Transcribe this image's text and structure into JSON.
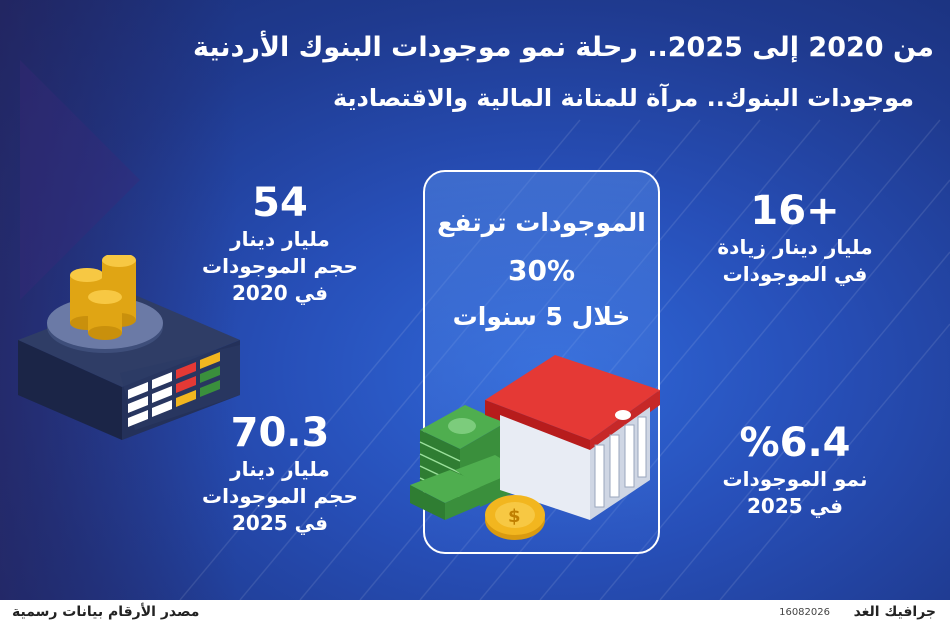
{
  "header": {
    "title": "من 2020 إلى 2025.. رحلة نمو موجودات البنوك الأردنية",
    "subtitle": "موجودات البنوك.. مرآة للمتانة المالية والاقتصادية"
  },
  "center_box": {
    "line1": "الموجودات ترتفع",
    "line2": "30%",
    "line3": "خلال 5 سنوات"
  },
  "stats": {
    "increase": {
      "value": "+16",
      "line1": "مليار دينار زيادة",
      "line2": "في الموجودات"
    },
    "growth": {
      "value": "%6.4",
      "line1": "نمو الموجودات",
      "line2": "في 2025"
    },
    "assets_2020": {
      "value": "54",
      "line1": "مليار دينار",
      "line2": "حجم الموجودات",
      "line3": "في 2020"
    },
    "assets_2025": {
      "value": "70.3",
      "line1": "مليار دينار",
      "line2": "حجم الموجودات",
      "line3": "في 2025"
    }
  },
  "footer": {
    "source": "مصدر الأرقام بيانات رسمية",
    "credit": "جرافيك الغد",
    "date": "16082026"
  },
  "colors": {
    "background_dark": "#1a2f77",
    "background_light": "#2f67d8",
    "roof_red": "#e53935",
    "money_green": "#3a8f3c",
    "coin_gold": "#f2b61f"
  },
  "icons": [
    "coin-scale-illustration",
    "bank-building-icon",
    "money-stack-icon",
    "coin-icon"
  ]
}
